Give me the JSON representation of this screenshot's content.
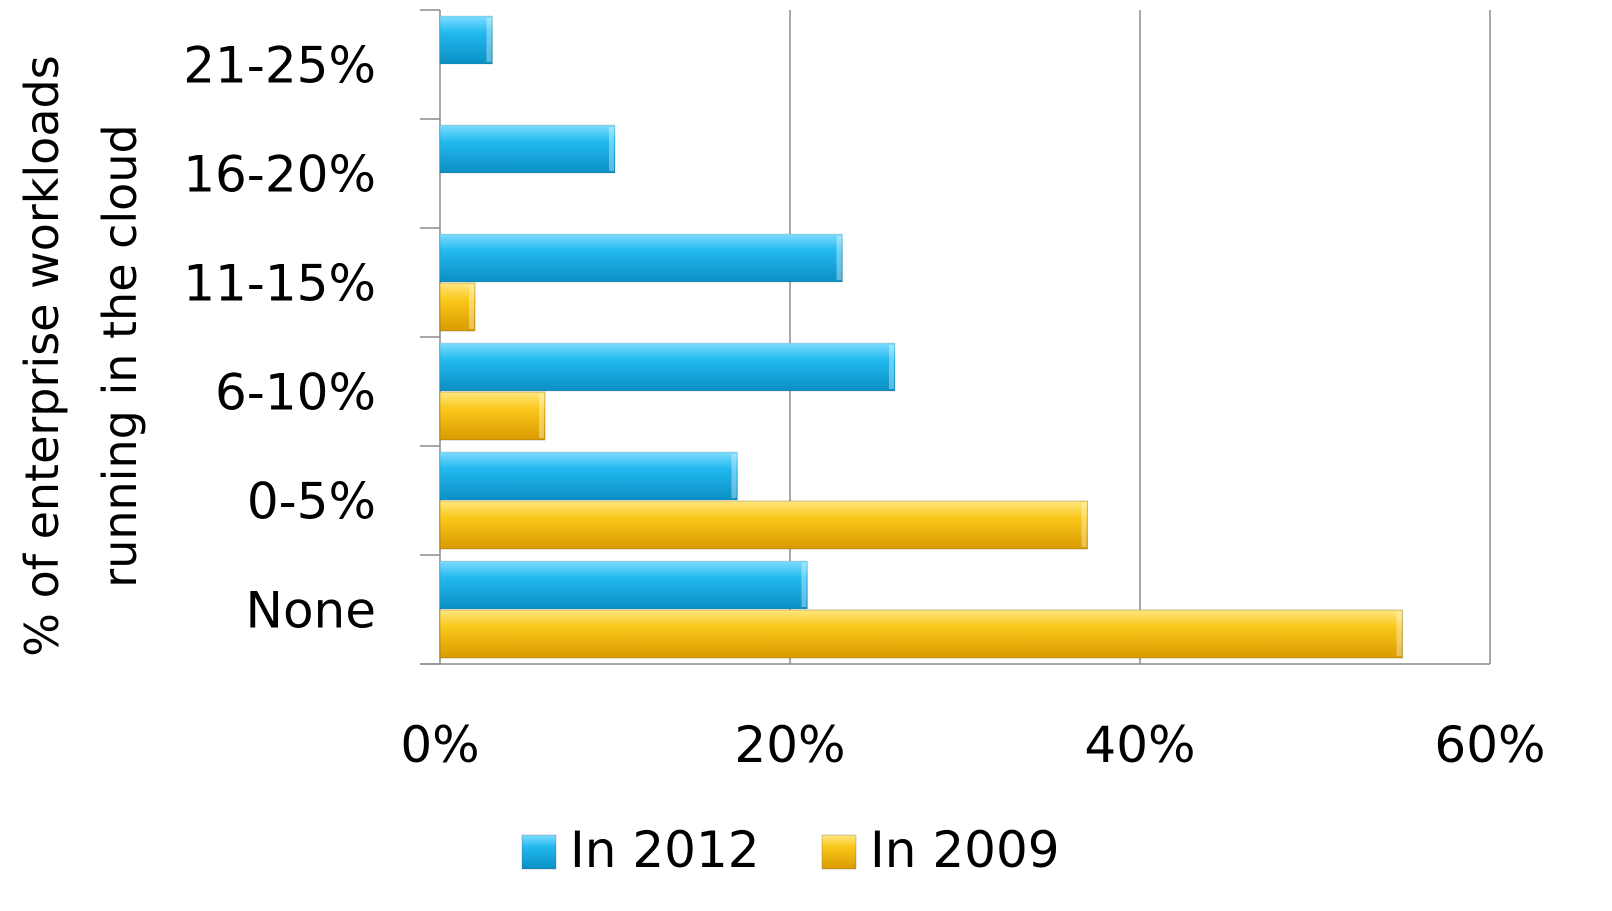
{
  "chart_data": {
    "type": "bar",
    "orientation": "horizontal",
    "ylabel_lines": [
      "% of enterprise workloads",
      "running in the cloud"
    ],
    "xlabel": "",
    "categories": [
      "None",
      "0-5%",
      "6-10%",
      "11-15%",
      "16-20%",
      "21-25%"
    ],
    "series": [
      {
        "name": "In 2012",
        "color": "#1aaee6",
        "values": [
          21,
          17,
          26,
          23,
          10,
          3
        ]
      },
      {
        "name": "In 2009",
        "color": "#f6be00",
        "values": [
          55,
          37,
          6,
          2,
          0,
          0
        ]
      }
    ],
    "xlim": [
      0,
      60
    ],
    "x_ticks": [
      0,
      20,
      40,
      60
    ],
    "x_tick_labels": [
      "0%",
      "20%",
      "40%",
      "60%"
    ],
    "grid": "vertical",
    "legend_position": "bottom"
  }
}
